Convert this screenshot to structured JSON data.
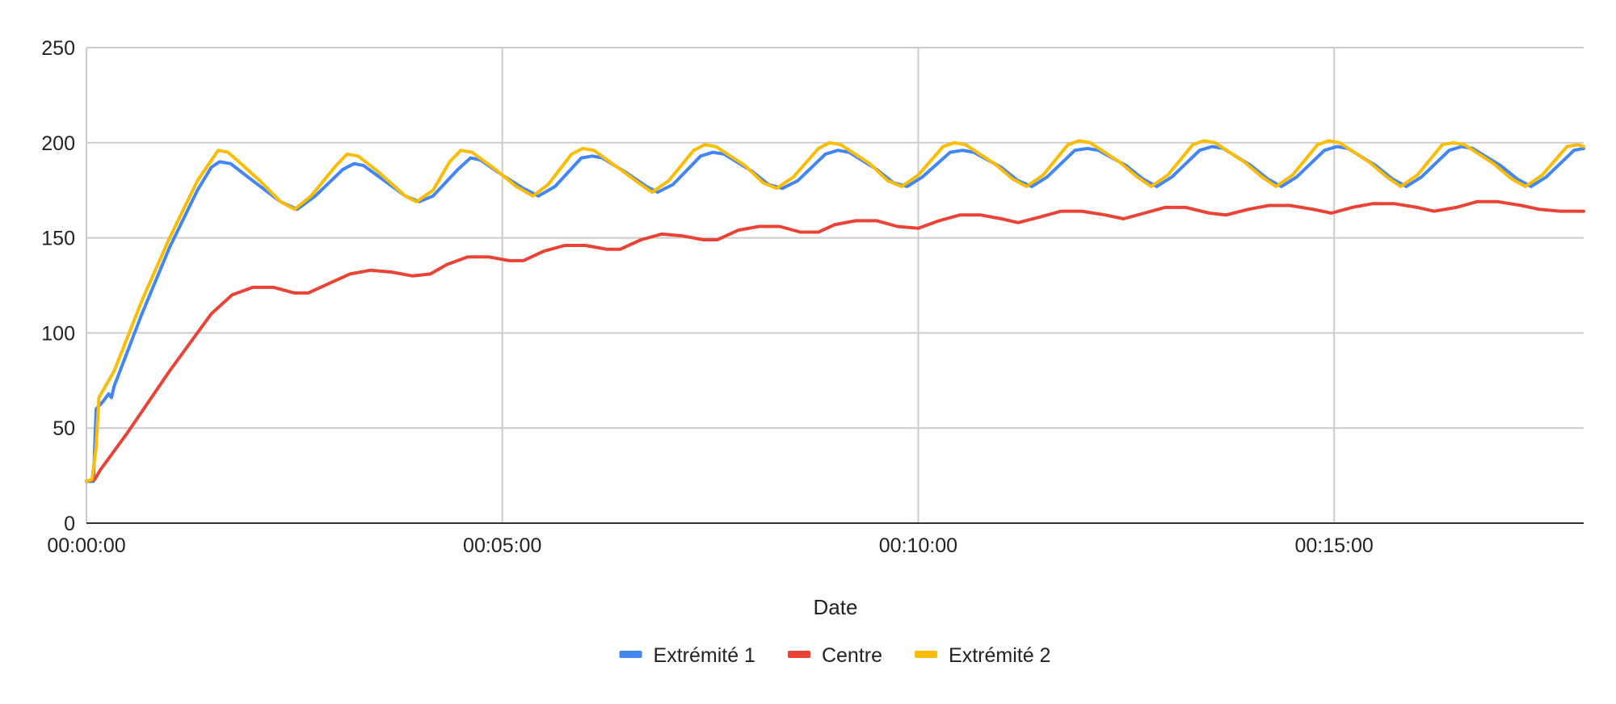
{
  "chart_data": {
    "type": "line",
    "title": "",
    "xlabel": "Date",
    "ylabel": "",
    "x_unit": "seconds",
    "xlim": [
      0,
      1080
    ],
    "ylim": [
      0,
      250
    ],
    "yticks": [
      0,
      50,
      100,
      150,
      200,
      250
    ],
    "xtick_values": [
      0,
      300,
      600,
      900
    ],
    "xtick_labels": [
      "00:00:00",
      "00:05:00",
      "00:10:00",
      "00:15:00"
    ],
    "grid": true,
    "legend_position": "bottom",
    "series": [
      {
        "name": "Extrémité 1",
        "color": "#4285f4",
        "points": [
          [
            0,
            22
          ],
          [
            5,
            22
          ],
          [
            7,
            60
          ],
          [
            12,
            64
          ],
          [
            16,
            68
          ],
          [
            18,
            66
          ],
          [
            20,
            72
          ],
          [
            40,
            110
          ],
          [
            60,
            145
          ],
          [
            80,
            175
          ],
          [
            90,
            187
          ],
          [
            96,
            190
          ],
          [
            104,
            189
          ],
          [
            120,
            180
          ],
          [
            140,
            169
          ],
          [
            152,
            165
          ],
          [
            165,
            172
          ],
          [
            185,
            186
          ],
          [
            193,
            189
          ],
          [
            200,
            188
          ],
          [
            215,
            180
          ],
          [
            230,
            172
          ],
          [
            240,
            169
          ],
          [
            250,
            172
          ],
          [
            268,
            186
          ],
          [
            277,
            192
          ],
          [
            284,
            191
          ],
          [
            300,
            183
          ],
          [
            315,
            176
          ],
          [
            326,
            172
          ],
          [
            338,
            177
          ],
          [
            357,
            192
          ],
          [
            365,
            193
          ],
          [
            372,
            192
          ],
          [
            390,
            184
          ],
          [
            404,
            177
          ],
          [
            412,
            174
          ],
          [
            423,
            178
          ],
          [
            443,
            193
          ],
          [
            452,
            195
          ],
          [
            460,
            194
          ],
          [
            480,
            185
          ],
          [
            492,
            178
          ],
          [
            502,
            176
          ],
          [
            513,
            180
          ],
          [
            533,
            194
          ],
          [
            542,
            196
          ],
          [
            550,
            195
          ],
          [
            570,
            186
          ],
          [
            582,
            179
          ],
          [
            592,
            177
          ],
          [
            603,
            182
          ],
          [
            623,
            195
          ],
          [
            632,
            196
          ],
          [
            640,
            195
          ],
          [
            660,
            187
          ],
          [
            672,
            180
          ],
          [
            682,
            177
          ],
          [
            693,
            182
          ],
          [
            713,
            196
          ],
          [
            722,
            197
          ],
          [
            730,
            196
          ],
          [
            750,
            188
          ],
          [
            762,
            181
          ],
          [
            772,
            177
          ],
          [
            783,
            182
          ],
          [
            803,
            196
          ],
          [
            812,
            198
          ],
          [
            820,
            197
          ],
          [
            840,
            188
          ],
          [
            852,
            181
          ],
          [
            862,
            177
          ],
          [
            873,
            182
          ],
          [
            893,
            196
          ],
          [
            902,
            198
          ],
          [
            910,
            197
          ],
          [
            930,
            188
          ],
          [
            942,
            181
          ],
          [
            952,
            177
          ],
          [
            963,
            182
          ],
          [
            983,
            196
          ],
          [
            992,
            198
          ],
          [
            1000,
            197
          ],
          [
            1020,
            188
          ],
          [
            1032,
            181
          ],
          [
            1042,
            177
          ],
          [
            1053,
            182
          ],
          [
            1073,
            196
          ],
          [
            1080,
            197
          ]
        ]
      },
      {
        "name": "Centre",
        "color": "#ea4335",
        "points": [
          [
            0,
            22
          ],
          [
            6,
            23
          ],
          [
            10,
            28
          ],
          [
            30,
            48
          ],
          [
            60,
            80
          ],
          [
            90,
            110
          ],
          [
            105,
            120
          ],
          [
            120,
            124
          ],
          [
            135,
            124
          ],
          [
            150,
            121
          ],
          [
            160,
            121
          ],
          [
            175,
            126
          ],
          [
            190,
            131
          ],
          [
            205,
            133
          ],
          [
            220,
            132
          ],
          [
            235,
            130
          ],
          [
            248,
            131
          ],
          [
            260,
            136
          ],
          [
            275,
            140
          ],
          [
            290,
            140
          ],
          [
            305,
            138
          ],
          [
            315,
            138
          ],
          [
            330,
            143
          ],
          [
            345,
            146
          ],
          [
            360,
            146
          ],
          [
            375,
            144
          ],
          [
            385,
            144
          ],
          [
            400,
            149
          ],
          [
            415,
            152
          ],
          [
            430,
            151
          ],
          [
            445,
            149
          ],
          [
            455,
            149
          ],
          [
            470,
            154
          ],
          [
            485,
            156
          ],
          [
            500,
            156
          ],
          [
            515,
            153
          ],
          [
            528,
            153
          ],
          [
            540,
            157
          ],
          [
            555,
            159
          ],
          [
            570,
            159
          ],
          [
            585,
            156
          ],
          [
            600,
            155
          ],
          [
            615,
            159
          ],
          [
            630,
            162
          ],
          [
            645,
            162
          ],
          [
            660,
            160
          ],
          [
            672,
            158
          ],
          [
            688,
            161
          ],
          [
            703,
            164
          ],
          [
            718,
            164
          ],
          [
            735,
            162
          ],
          [
            748,
            160
          ],
          [
            763,
            163
          ],
          [
            778,
            166
          ],
          [
            793,
            166
          ],
          [
            810,
            163
          ],
          [
            822,
            162
          ],
          [
            838,
            165
          ],
          [
            853,
            167
          ],
          [
            868,
            167
          ],
          [
            885,
            165
          ],
          [
            898,
            163
          ],
          [
            913,
            166
          ],
          [
            928,
            168
          ],
          [
            943,
            168
          ],
          [
            960,
            166
          ],
          [
            972,
            164
          ],
          [
            988,
            166
          ],
          [
            1003,
            169
          ],
          [
            1018,
            169
          ],
          [
            1035,
            167
          ],
          [
            1048,
            165
          ],
          [
            1063,
            164
          ],
          [
            1080,
            164
          ]
        ]
      },
      {
        "name": "Extrémité 2",
        "color": "#fbbc04",
        "points": [
          [
            0,
            22
          ],
          [
            4,
            23
          ],
          [
            7,
            40
          ],
          [
            9,
            66
          ],
          [
            20,
            80
          ],
          [
            40,
            117
          ],
          [
            60,
            150
          ],
          [
            80,
            180
          ],
          [
            95,
            196
          ],
          [
            102,
            195
          ],
          [
            110,
            190
          ],
          [
            125,
            180
          ],
          [
            140,
            169
          ],
          [
            150,
            165
          ],
          [
            162,
            172
          ],
          [
            180,
            188
          ],
          [
            188,
            194
          ],
          [
            196,
            193
          ],
          [
            210,
            185
          ],
          [
            230,
            172
          ],
          [
            238,
            169
          ],
          [
            250,
            175
          ],
          [
            262,
            190
          ],
          [
            270,
            196
          ],
          [
            278,
            195
          ],
          [
            295,
            186
          ],
          [
            310,
            177
          ],
          [
            322,
            172
          ],
          [
            333,
            178
          ],
          [
            350,
            194
          ],
          [
            358,
            197
          ],
          [
            366,
            196
          ],
          [
            385,
            186
          ],
          [
            400,
            178
          ],
          [
            408,
            174
          ],
          [
            420,
            180
          ],
          [
            438,
            196
          ],
          [
            446,
            199
          ],
          [
            454,
            198
          ],
          [
            475,
            188
          ],
          [
            488,
            179
          ],
          [
            498,
            176
          ],
          [
            510,
            182
          ],
          [
            528,
            197
          ],
          [
            536,
            200
          ],
          [
            544,
            199
          ],
          [
            565,
            189
          ],
          [
            578,
            180
          ],
          [
            588,
            177
          ],
          [
            600,
            183
          ],
          [
            618,
            198
          ],
          [
            626,
            200
          ],
          [
            634,
            199
          ],
          [
            655,
            189
          ],
          [
            668,
            181
          ],
          [
            678,
            177
          ],
          [
            690,
            183
          ],
          [
            708,
            199
          ],
          [
            716,
            201
          ],
          [
            724,
            200
          ],
          [
            745,
            190
          ],
          [
            758,
            182
          ],
          [
            768,
            177
          ],
          [
            780,
            183
          ],
          [
            798,
            199
          ],
          [
            806,
            201
          ],
          [
            814,
            200
          ],
          [
            835,
            190
          ],
          [
            848,
            182
          ],
          [
            858,
            177
          ],
          [
            870,
            183
          ],
          [
            888,
            199
          ],
          [
            896,
            201
          ],
          [
            904,
            200
          ],
          [
            925,
            190
          ],
          [
            938,
            182
          ],
          [
            948,
            177
          ],
          [
            960,
            183
          ],
          [
            978,
            199
          ],
          [
            986,
            200
          ],
          [
            994,
            199
          ],
          [
            1015,
            189
          ],
          [
            1028,
            181
          ],
          [
            1038,
            177
          ],
          [
            1050,
            183
          ],
          [
            1068,
            198
          ],
          [
            1076,
            199
          ],
          [
            1080,
            198
          ]
        ]
      }
    ]
  }
}
